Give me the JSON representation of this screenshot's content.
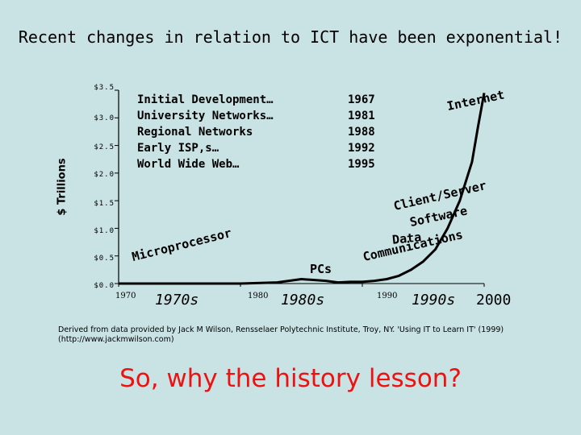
{
  "title": "Recent changes in relation to ICT have been exponential!",
  "chart_data": {
    "type": "line",
    "title": "Recent changes in relation to ICT have been exponential!",
    "ylabel": "$ Trillions",
    "y_ticks": [
      "$3.5",
      "$3.0",
      "$2.5",
      "$2.0",
      "$1.5",
      "$1.0",
      "$0.5",
      "$0.0"
    ],
    "y_values": [
      3.5,
      3.0,
      2.5,
      2.0,
      1.5,
      1.0,
      0.5,
      0.0
    ],
    "ylim": [
      0,
      3.5
    ],
    "xlim": [
      1970,
      2000
    ],
    "x_labels": [
      {
        "year": 1970,
        "small": "1970"
      },
      {
        "year": 1975,
        "era": "1970s"
      },
      {
        "year": 1980,
        "small": "1980"
      },
      {
        "year": 1984,
        "era": "1980s"
      },
      {
        "year": 1990,
        "small": "1990"
      },
      {
        "year": 1995,
        "era": "1990s"
      },
      {
        "year": 2000,
        "era": "2000"
      }
    ],
    "series": [
      {
        "x": [
          1970,
          1975,
          1980,
          1983,
          1985,
          1987,
          1988,
          1989,
          1990,
          1991,
          1992,
          1993,
          1994,
          1995,
          1996,
          1997,
          1998,
          1999,
          1999.5,
          2000
        ],
        "values": [
          0.0,
          0.0,
          0.0,
          0.02,
          0.08,
          0.05,
          0.02,
          0.03,
          0.03,
          0.05,
          0.08,
          0.14,
          0.25,
          0.4,
          0.62,
          1.0,
          1.5,
          2.2,
          2.85,
          3.45
        ]
      }
    ],
    "events": [
      {
        "name": "Initial Development…",
        "year": "1967"
      },
      {
        "name": "University Networks…",
        "year": "1981"
      },
      {
        "name": "Regional Networks",
        "year": "1988"
      },
      {
        "name": "Early ISP,s…",
        "year": "1992"
      },
      {
        "name": "World Wide Web…",
        "year": "1995"
      }
    ],
    "annotations": [
      "Microprocessor",
      "PCs",
      "Data Communications",
      "Client/Server Software",
      "Internet"
    ]
  },
  "source": "Derived from data provided by Jack M Wilson, Rensselaer Polytechnic Institute, Troy, NY. 'Using IT to Learn IT' (1999) (http://www.jackmwilson.com)",
  "question": "So, why the history lesson?"
}
